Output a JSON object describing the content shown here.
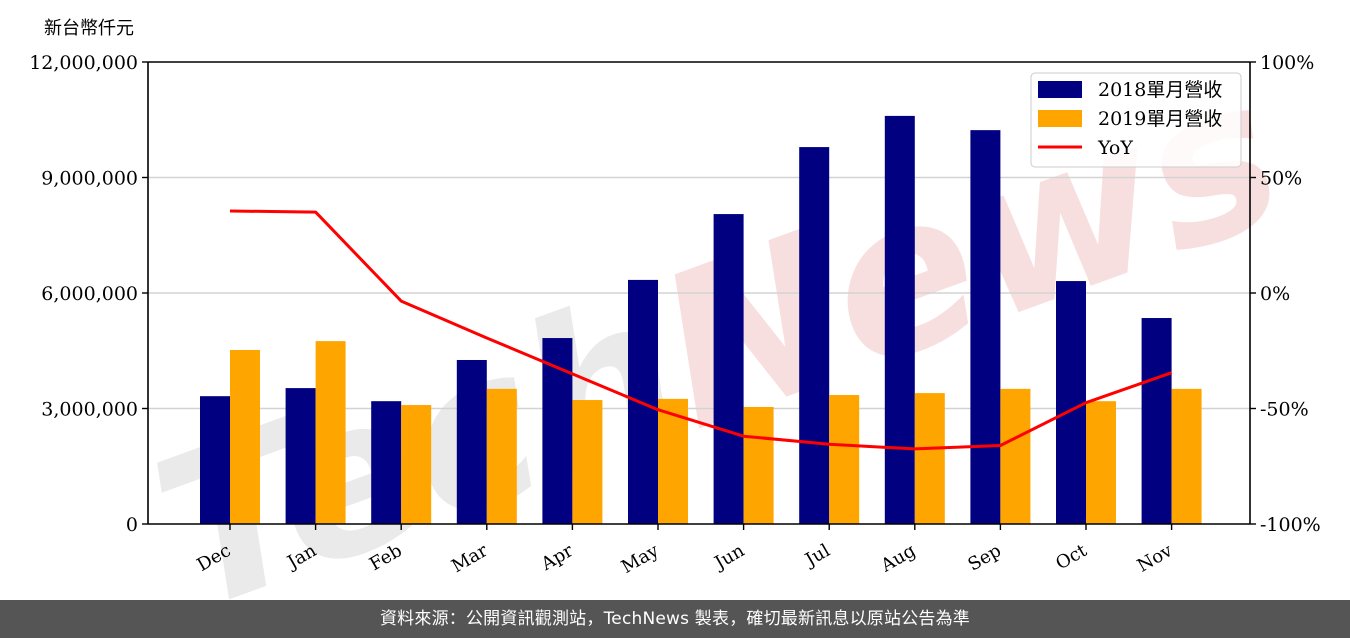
{
  "header": {
    "unit_label": "新台幣仟元"
  },
  "footer": {
    "source_text": "資料來源：公開資訊觀測站，TechNews 製表，確切最新訊息以原站公告為準"
  },
  "watermark": {
    "text": "TechNews",
    "colors": [
      "#d9d9d9",
      "#f2c4c4"
    ]
  },
  "colors": {
    "series_2018": "#000080",
    "series_2019": "#FFA500",
    "yoy": "#FF0000",
    "grid": "#d3d3d3",
    "axis": "#000000"
  },
  "chart_data": {
    "type": "bar",
    "title": "",
    "xlabel": "",
    "ylabel": "新台幣仟元",
    "y2label": "",
    "categories": [
      "Dec",
      "Jan",
      "Feb",
      "Mar",
      "Apr",
      "May",
      "Jun",
      "Jul",
      "Aug",
      "Sep",
      "Oct",
      "Nov"
    ],
    "series": [
      {
        "name": "2018單月營收",
        "type": "bar",
        "axis": "left",
        "color": "#000080",
        "values": [
          3320000,
          3530000,
          3190000,
          4260000,
          4830000,
          6340000,
          8050000,
          9790000,
          10600000,
          10230000,
          6310000,
          5350000
        ]
      },
      {
        "name": "2019單月營收",
        "type": "bar",
        "axis": "left",
        "color": "#FFA500",
        "values": [
          4520000,
          4750000,
          3090000,
          3510000,
          3220000,
          3250000,
          3040000,
          3350000,
          3400000,
          3510000,
          3190000,
          3510000
        ]
      },
      {
        "name": "YoY",
        "type": "line",
        "axis": "right",
        "color": "#FF0000",
        "values": [
          35.5,
          35.0,
          -3.5,
          -19.5,
          -35.0,
          -50.5,
          -62.0,
          -65.5,
          -67.5,
          -66.0,
          -47.5,
          -34.5
        ]
      }
    ],
    "ylim": [
      0,
      12000000
    ],
    "yticks": [
      0,
      3000000,
      6000000,
      9000000,
      12000000
    ],
    "ytick_labels": [
      "0",
      "3,000,000",
      "6,000,000",
      "9,000,000",
      "12,000,000"
    ],
    "y2lim": [
      -100,
      100
    ],
    "y2ticks": [
      -100,
      -50,
      0,
      50,
      100
    ],
    "y2tick_labels": [
      "-100%",
      "-50%",
      "0%",
      "50%",
      "100%"
    ],
    "grid": true,
    "legend_position": "upper right",
    "legend": [
      "2018單月營收",
      "2019單月營收",
      "YoY"
    ]
  }
}
